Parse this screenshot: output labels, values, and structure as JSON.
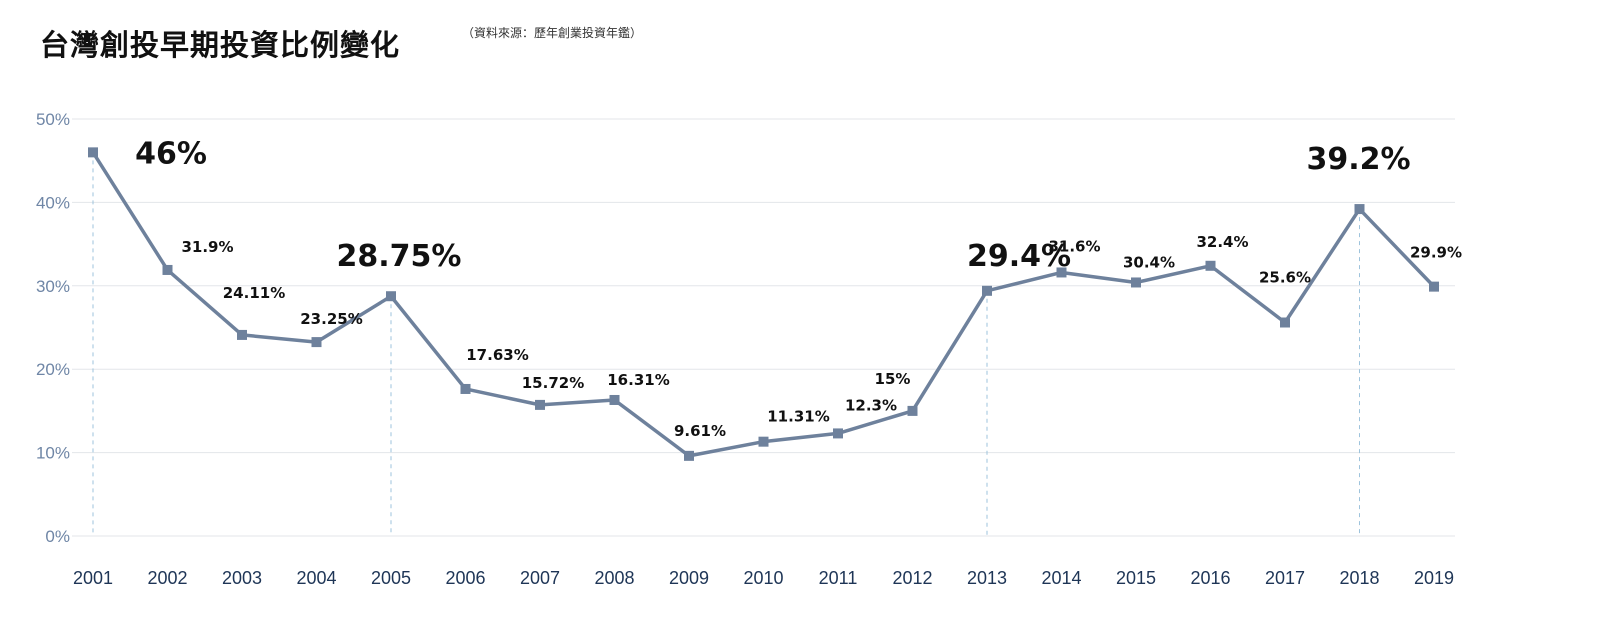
{
  "title": "台灣創投早期投資比例變化",
  "source": "（資料來源：歷年創業投資年鑑）",
  "colors": {
    "line": "#6e819c",
    "grid": "#e3e6ea",
    "guide": "#9ec3dc",
    "label": "#111111"
  },
  "chart_data": {
    "type": "line",
    "title": "台灣創投早期投資比例變化",
    "xlabel": "",
    "ylabel": "",
    "ylim": [
      0,
      50
    ],
    "y_ticks": [
      "0%",
      "10%",
      "20%",
      "30%",
      "40%",
      "50%"
    ],
    "grid": "horizontal",
    "categories": [
      "2001",
      "2002",
      "2003",
      "2004",
      "2005",
      "2006",
      "2007",
      "2008",
      "2009",
      "2010",
      "2011",
      "2012",
      "2013",
      "2014",
      "2015",
      "2016",
      "2017",
      "2018",
      "2019"
    ],
    "values": [
      46,
      31.9,
      24.11,
      23.25,
      28.75,
      17.63,
      15.72,
      16.31,
      9.61,
      11.31,
      12.3,
      15,
      29.4,
      31.6,
      30.4,
      32.4,
      25.6,
      39.2,
      29.9
    ],
    "labels": [
      "46%",
      "31.9%",
      "24.11%",
      "23.25%",
      "28.75%",
      "17.63%",
      "15.72%",
      "16.31%",
      "9.61%",
      "11.31%",
      "12.3%",
      "15%",
      "29.4%",
      "31.6%",
      "30.4%",
      "32.4%",
      "25.6%",
      "39.2%",
      "29.9%"
    ],
    "highlighted": [
      "2001",
      "2005",
      "2013",
      "2018"
    ]
  }
}
